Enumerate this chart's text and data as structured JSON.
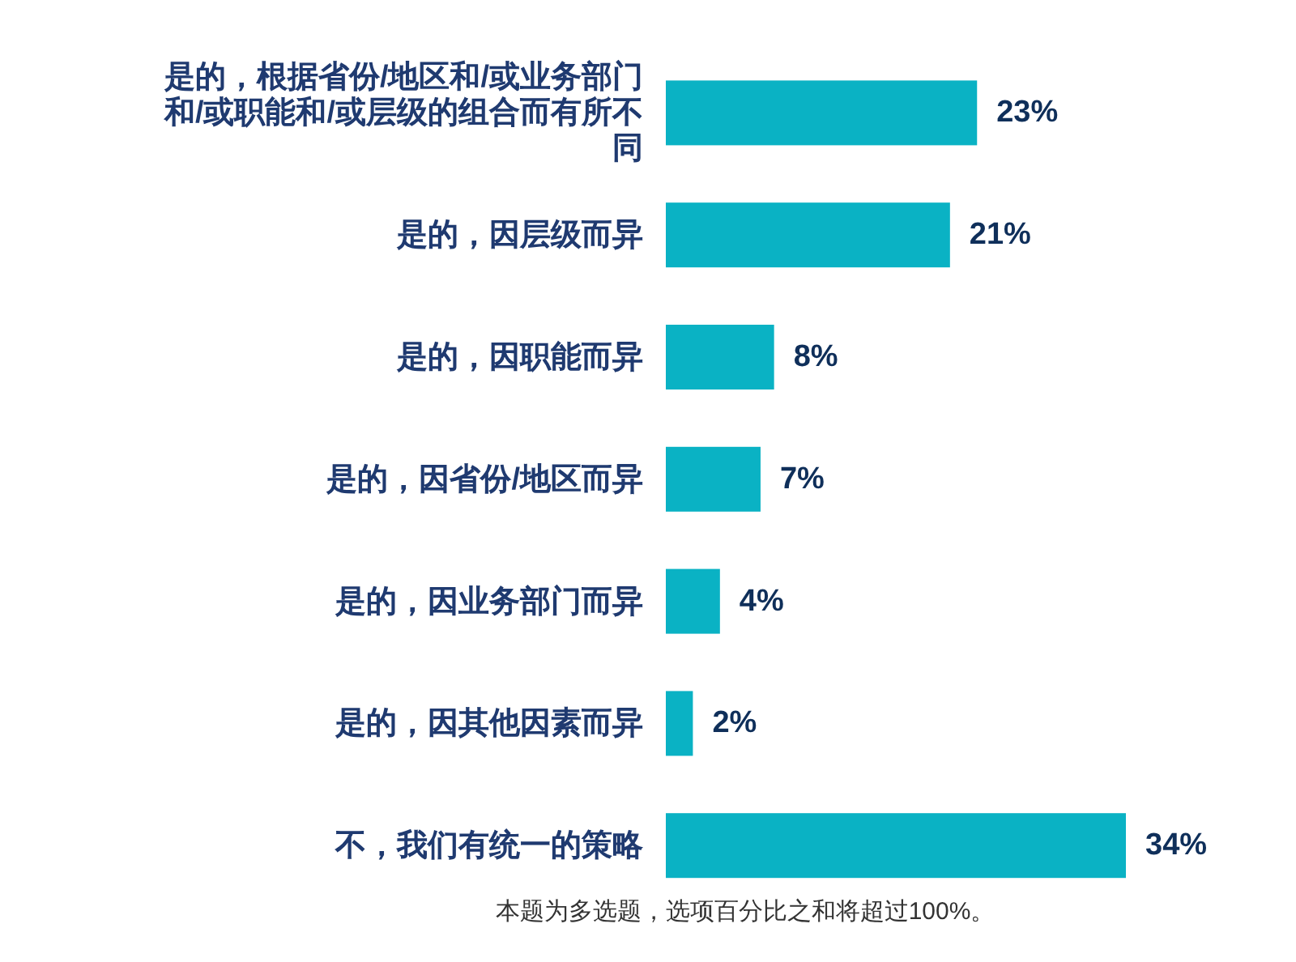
{
  "chart_data": {
    "type": "bar",
    "orientation": "horizontal",
    "categories": [
      "是的，根据省份/地区和/或业务部门和/或职能和/或层级的组合而有所不同",
      "是的，因层级而异",
      "是的，因职能而异",
      "是的，因省份/地区而异",
      "是的，因业务部门而异",
      "是的，因其他因素而异",
      "不，我们有统一的策略"
    ],
    "values": [
      23,
      21,
      8,
      7,
      4,
      2,
      34
    ],
    "color": "#0ab2c4",
    "value_labels": [
      "23%",
      "21%",
      "8%",
      "7%",
      "4%",
      "2%",
      "34%"
    ],
    "annotations": [
      "本题为多选题，选项百分比之和将超过100%。"
    ]
  }
}
